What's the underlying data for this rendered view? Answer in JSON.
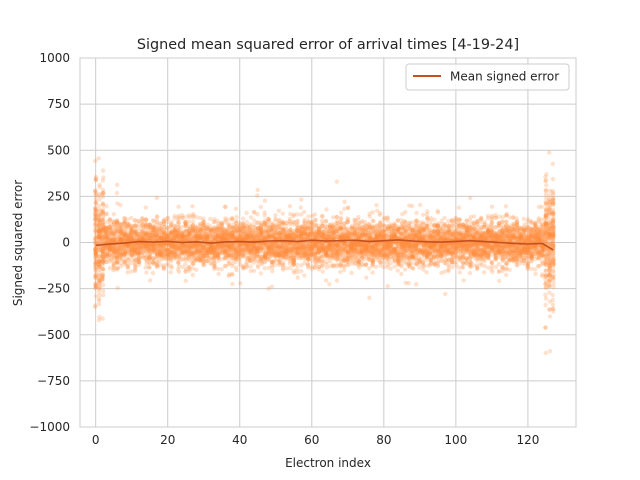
{
  "chart_data": {
    "type": "scatter",
    "title": "Signed mean squared error of arrival times [4-19-24]",
    "xlabel": "Electron index",
    "ylabel": "Signed squared error",
    "xlim": [
      -4.35,
      133.35
    ],
    "ylim": [
      -1000,
      1000
    ],
    "xticks": [
      0,
      20,
      40,
      60,
      80,
      100,
      120
    ],
    "yticks": [
      -1000,
      -750,
      -500,
      -250,
      0,
      250,
      500,
      750,
      1000
    ],
    "ytick_labels": [
      "−1000",
      "−750",
      "−500",
      "−250",
      "0",
      "250",
      "500",
      "750",
      "1000"
    ],
    "grid": true,
    "legend": {
      "position": "top-right",
      "entries": [
        "Mean signed error"
      ]
    },
    "colors": {
      "scatter": "#ff8c3a",
      "mean_line": "#c4501e",
      "grid": "#cccccc"
    },
    "scatter_description": {
      "electron_index_range": [
        0,
        127
      ],
      "typical_band": [
        -150,
        150
      ],
      "points_per_index": 60
    },
    "series": [
      {
        "name": "Mean signed error",
        "type": "line",
        "x": [
          0,
          4,
          8,
          12,
          16,
          20,
          24,
          28,
          32,
          36,
          40,
          44,
          48,
          52,
          56,
          60,
          64,
          68,
          72,
          76,
          80,
          84,
          88,
          92,
          96,
          100,
          104,
          108,
          112,
          116,
          120,
          124,
          127
        ],
        "y": [
          -15,
          -8,
          -3,
          5,
          2,
          6,
          0,
          4,
          -3,
          3,
          5,
          2,
          8,
          10,
          6,
          12,
          8,
          10,
          12,
          6,
          10,
          14,
          8,
          4,
          2,
          6,
          10,
          5,
          0,
          -5,
          -8,
          -5,
          -40
        ]
      }
    ]
  }
}
